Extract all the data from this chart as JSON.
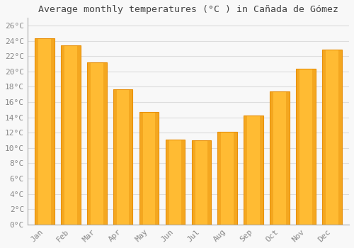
{
  "title": "Average monthly temperatures (°C ) in Cañada de Gómez",
  "months": [
    "Jan",
    "Feb",
    "Mar",
    "Apr",
    "May",
    "Jun",
    "Jul",
    "Aug",
    "Sep",
    "Oct",
    "Nov",
    "Dec"
  ],
  "values": [
    24.3,
    23.4,
    21.2,
    17.7,
    14.7,
    11.1,
    11.0,
    12.1,
    14.2,
    17.4,
    20.4,
    22.9
  ],
  "bar_color_main": "#FFBB33",
  "bar_color_edge": "#E8900A",
  "ylim": [
    0,
    27
  ],
  "yticks": [
    0,
    2,
    4,
    6,
    8,
    10,
    12,
    14,
    16,
    18,
    20,
    22,
    24,
    26
  ],
  "ytick_labels": [
    "0°C",
    "2°C",
    "4°C",
    "6°C",
    "8°C",
    "10°C",
    "12°C",
    "14°C",
    "16°C",
    "18°C",
    "20°C",
    "22°C",
    "24°C",
    "26°C"
  ],
  "bg_color": "#f8f8f8",
  "plot_bg": "#f8f8f8",
  "grid_color": "#dddddd",
  "title_fontsize": 9.5,
  "tick_fontsize": 8,
  "bar_width": 0.75,
  "font_family": "monospace",
  "tick_color": "#888888",
  "spine_color": "#aaaaaa",
  "figsize": [
    5.0,
    3.5
  ],
  "dpi": 100
}
